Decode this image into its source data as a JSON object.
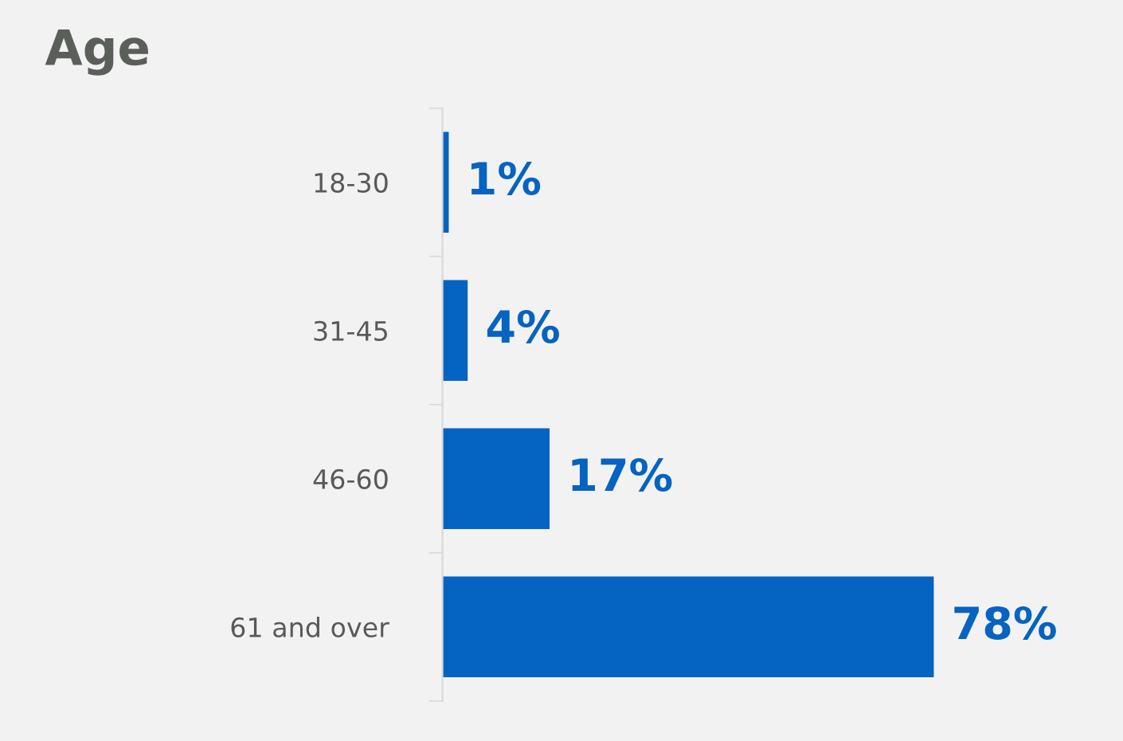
{
  "chart_data": {
    "type": "bar",
    "orientation": "horizontal",
    "title": "Age",
    "categories": [
      "18-30",
      "31-45",
      "46-60",
      "61 and over"
    ],
    "values": [
      1,
      4,
      17,
      78
    ],
    "value_labels": [
      "1%",
      "4%",
      "17%",
      "78%"
    ],
    "color": "#0563c1",
    "grid": false,
    "legend": false
  }
}
